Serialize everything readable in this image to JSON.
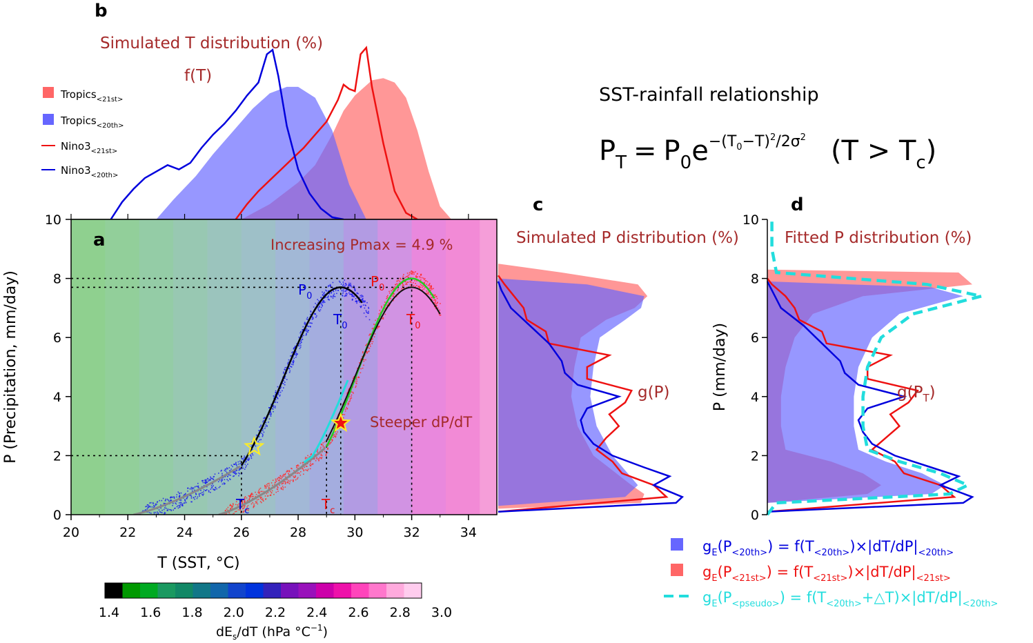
{
  "chart_data": [
    {
      "panel": "a",
      "type": "scatter",
      "annotation_top": "Increasing Pmax  = 4.9 %",
      "annotation_mid": "Steeper dP/dT",
      "xlabel": "T (SST, °C)",
      "ylabel": "P (Precipitation, mm/day)",
      "xlim": [
        20,
        35
      ],
      "ylim": [
        0,
        10
      ],
      "xticks": [
        "20",
        "22",
        "24",
        "26",
        "28",
        "30",
        "32",
        "34"
      ],
      "yticks": [
        "0",
        "2",
        "4",
        "6",
        "8",
        "10"
      ],
      "labels": {
        "p0": "P",
        "t0": "T",
        "tc": "T",
        "sub0": "0",
        "subc": "c"
      },
      "series": [
        {
          "name": "20th",
          "color": "#0000dd",
          "P0": 7.7,
          "T0": 29.5,
          "sigma": 2.0,
          "Tc": 26.0,
          "star": [
            26.45,
            2.3
          ],
          "ref_lines": {
            "P0": 7.7,
            "T0": 29.5,
            "Pc": 2.0,
            "Tc": 26.0
          }
        },
        {
          "name": "21st",
          "color": "#ee1111",
          "P0": 8.0,
          "T0": 32.0,
          "sigma": 1.9,
          "Tc": 29.0,
          "star": [
            29.5,
            3.1
          ],
          "ref_lines": {
            "P0": 8.0,
            "T0": 32.0,
            "Tc": 29.0
          }
        }
      ],
      "background_bands": {
        "T_start": 20.0,
        "T_step": 1.2,
        "count": 11
      }
    },
    {
      "panel": "b",
      "type": "area",
      "title": "Simulated T distribution (%)",
      "func_label": "f(T)",
      "x_range": [
        20,
        35
      ],
      "series": [
        {
          "name": "Tropics",
          "sub": "<21st>",
          "kind": "fill",
          "color": "#ff6666",
          "x": [
            26.0,
            27.0,
            28.0,
            28.6,
            29.2,
            29.6,
            30.0,
            30.6,
            31.0,
            31.4,
            31.8,
            32.2,
            32.6,
            33.0,
            33.4
          ],
          "y": [
            0.0,
            0.7,
            1.7,
            2.5,
            3.9,
            5.0,
            5.7,
            6.4,
            6.5,
            6.3,
            5.6,
            4.1,
            2.2,
            0.6,
            0.0
          ]
        },
        {
          "name": "Tropics",
          "sub": "<20th>",
          "kind": "fill",
          "color": "#6666ff",
          "x": [
            23.0,
            23.6,
            24.4,
            25.0,
            25.8,
            26.4,
            27.0,
            27.6,
            28.0,
            28.6,
            29.2,
            29.8,
            30.4
          ],
          "y": [
            0.0,
            0.9,
            2.0,
            3.0,
            4.2,
            5.1,
            5.8,
            6.1,
            6.1,
            5.6,
            4.1,
            1.6,
            0.0
          ]
        },
        {
          "name": "Nino3",
          "sub": "<21st>",
          "kind": "line",
          "color": "#ee1111",
          "x": [
            25.8,
            26.2,
            26.6,
            27.0,
            27.4,
            27.8,
            28.2,
            28.6,
            29.0,
            29.4,
            29.6,
            29.8,
            30.0,
            30.2,
            30.4,
            30.6,
            31.0,
            31.4,
            31.8,
            32.2
          ],
          "y": [
            0.0,
            0.7,
            1.3,
            1.8,
            2.3,
            2.8,
            3.3,
            3.9,
            4.5,
            5.5,
            6.2,
            6.0,
            5.9,
            7.6,
            7.9,
            6.1,
            3.5,
            1.3,
            0.3,
            0.0
          ]
        },
        {
          "name": "Nino3",
          "sub": "<20th>",
          "kind": "line",
          "color": "#0000dd",
          "x": [
            21.4,
            21.8,
            22.2,
            22.6,
            23.0,
            23.4,
            23.8,
            24.2,
            24.6,
            25.0,
            25.4,
            25.8,
            26.2,
            26.6,
            26.9,
            27.1,
            27.3,
            27.6,
            28.0,
            28.4,
            28.8,
            29.2,
            29.6
          ],
          "y": [
            0.0,
            0.8,
            1.4,
            1.9,
            2.2,
            2.5,
            2.3,
            2.6,
            3.3,
            3.9,
            4.4,
            5.0,
            5.7,
            6.3,
            7.6,
            7.8,
            6.6,
            4.3,
            2.3,
            1.2,
            0.5,
            0.1,
            0.0
          ]
        }
      ]
    },
    {
      "panel": "c",
      "type": "area",
      "title": "Simulated P distribution (%)",
      "func_label": "g(P)",
      "y_range": [
        0,
        10
      ],
      "series": [
        {
          "name": "Tropics 21st",
          "kind": "fill",
          "color": "#ff6666",
          "P": [
            0.2,
            0.4,
            0.7,
            1.0,
            1.5,
            2.0,
            3.0,
            4.0,
            5.0,
            6.0,
            6.6,
            7.0,
            7.4,
            7.8,
            8.2,
            8.5
          ],
          "g": [
            0,
            4.5,
            4.6,
            4.2,
            3.6,
            3.0,
            2.5,
            2.3,
            2.4,
            2.6,
            3.4,
            4.3,
            4.7,
            4.4,
            2.0,
            0
          ]
        },
        {
          "name": "Tropics 20th",
          "kind": "fill",
          "color": "#6666ff",
          "P": [
            0.3,
            0.6,
            1.0,
            1.5,
            2.0,
            3.0,
            4.0,
            5.0,
            6.0,
            6.6,
            7.0,
            7.4,
            7.8,
            8.0
          ],
          "g": [
            0,
            4.0,
            4.4,
            4.0,
            3.6,
            3.1,
            2.9,
            3.0,
            3.2,
            4.0,
            4.5,
            4.6,
            2.8,
            0
          ]
        },
        {
          "name": "Nino3 21st",
          "kind": "line",
          "color": "#ee1111",
          "P": [
            0.1,
            0.6,
            1.0,
            1.4,
            1.8,
            2.2,
            2.6,
            3.0,
            3.4,
            3.8,
            4.2,
            4.6,
            5.0,
            5.4,
            5.8,
            6.2,
            6.6,
            7.0,
            7.4,
            7.8,
            8.1
          ],
          "g": [
            0,
            5.3,
            4.9,
            3.9,
            3.6,
            3.1,
            3.4,
            3.8,
            3.5,
            4.0,
            4.2,
            2.8,
            2.8,
            3.5,
            1.6,
            1.5,
            0.9,
            0.8,
            0.5,
            0.2,
            0
          ]
        },
        {
          "name": "Nino3 20th",
          "kind": "line",
          "color": "#0000dd",
          "P": [
            0.1,
            0.4,
            0.6,
            1.0,
            1.3,
            1.6,
            2.0,
            2.4,
            2.8,
            3.2,
            3.6,
            4.0,
            4.4,
            4.8,
            5.2,
            5.8,
            6.4,
            7.0,
            7.6,
            7.9
          ],
          "g": [
            0,
            5.6,
            5.8,
            4.9,
            5.4,
            4.6,
            3.6,
            3.0,
            2.7,
            2.6,
            2.8,
            3.8,
            2.5,
            2.1,
            2.0,
            1.6,
            1.0,
            0.4,
            0.1,
            0
          ]
        }
      ]
    },
    {
      "panel": "d",
      "type": "area",
      "title": "Fitted P distribution (%)",
      "func_label": "g(P",
      "func_sub": "T",
      "func_close": ")",
      "ylabel": "P (mm/day)",
      "yticks": [
        "0",
        "2",
        "4",
        "6",
        "8",
        "10"
      ],
      "series": [
        {
          "name": "gE 21st",
          "kind": "fill",
          "color": "#ff6666",
          "P": [
            0.4,
            0.7,
            1.0,
            1.4,
            1.8,
            2.2,
            3.0,
            4.0,
            5.0,
            6.0,
            6.8,
            7.4,
            7.8,
            8.2,
            8.3
          ],
          "g": [
            0,
            2.2,
            2.5,
            2.1,
            1.4,
            0.4,
            0.3,
            0.3,
            0.4,
            0.6,
            1.0,
            2.1,
            4.5,
            4.2,
            0
          ]
        },
        {
          "name": "gE 20th",
          "kind": "fill",
          "color": "#6666ff",
          "P": [
            0.4,
            0.7,
            1.0,
            1.4,
            1.8,
            2.2,
            3.0,
            4.0,
            5.0,
            6.0,
            6.8,
            7.4,
            7.7,
            7.9
          ],
          "g": [
            0,
            3.6,
            3.9,
            3.4,
            2.6,
            2.0,
            1.9,
            1.9,
            2.0,
            2.3,
            2.9,
            4.3,
            3.6,
            0
          ]
        },
        {
          "name": "Nino3 21st",
          "kind": "line",
          "color": "#ee1111",
          "P": [
            0.1,
            0.6,
            1.0,
            1.4,
            1.8,
            2.2,
            2.6,
            3.0,
            3.4,
            3.8,
            4.2,
            4.6,
            5.0,
            5.4,
            5.8,
            6.2,
            6.6,
            7.0,
            7.4,
            7.8,
            8.0
          ],
          "g": [
            0,
            4.1,
            3.8,
            3.0,
            2.8,
            2.3,
            2.6,
            2.9,
            2.7,
            3.1,
            3.3,
            2.2,
            2.2,
            2.7,
            1.3,
            1.2,
            0.7,
            0.6,
            0.4,
            0.1,
            0
          ]
        },
        {
          "name": "Nino3 20th",
          "kind": "line",
          "color": "#0000dd",
          "P": [
            0.1,
            0.4,
            0.6,
            1.0,
            1.3,
            1.6,
            2.0,
            2.4,
            2.8,
            3.2,
            3.6,
            4.0,
            4.4,
            4.8,
            5.2,
            5.8,
            6.4,
            7.0,
            7.6,
            7.9
          ],
          "g": [
            0,
            4.3,
            4.5,
            3.8,
            4.2,
            3.6,
            2.8,
            2.3,
            2.1,
            2.0,
            2.2,
            3.0,
            2.0,
            1.7,
            1.6,
            1.2,
            0.8,
            0.3,
            0.1,
            0
          ]
        },
        {
          "name": "gE pseudo",
          "kind": "dashed",
          "color": "#22dddd",
          "P": [
            0.0,
            0.4,
            0.7,
            1.0,
            1.4,
            1.8,
            2.2,
            3.0,
            4.0,
            5.0,
            6.0,
            6.8,
            7.4,
            7.8,
            8.2,
            9.0,
            10.0
          ],
          "g": [
            0,
            0.2,
            4.0,
            4.4,
            3.8,
            2.9,
            2.2,
            2.1,
            2.1,
            2.2,
            2.5,
            3.2,
            4.7,
            3.5,
            0.2,
            0.1,
            0.1
          ]
        }
      ]
    },
    {
      "panel": "colorbar",
      "type": "heatmap",
      "label": "dE",
      "label_sub": "s",
      "label_rest": "/dT (hPa °C",
      "label_sup": "−1",
      "label_close": ")",
      "ticks": [
        "1.4",
        "1.6",
        "1.8",
        "2.0",
        "2.2",
        "2.4",
        "2.6",
        "2.8",
        "3.0"
      ],
      "colors": [
        "#000000",
        "#009900",
        "#00aa22",
        "#1a9960",
        "#118866",
        "#117788",
        "#1166aa",
        "#1144cc",
        "#0033dd",
        "#3322bb",
        "#7711bb",
        "#9911bb",
        "#cc00aa",
        "#ee11aa",
        "#ff44bb",
        "#ff77cc",
        "#ffaadd",
        "#ffccee"
      ]
    }
  ],
  "text": {
    "label_a": "a",
    "label_b": "b",
    "label_c": "c",
    "label_d": "d",
    "relationship_title": "SST-rainfall relationship",
    "formula": {
      "lhs_p": "P",
      "lhs_sub": "T",
      "eq": "=",
      "p0": "P",
      "p0_sub": "0",
      "e": "e",
      "exp_a": "−(T",
      "exp_sub": "0",
      "exp_b": "−T)",
      "exp_sup": "2",
      "exp_c": "/2σ",
      "exp_sup2": "2",
      "cond": "(T > T",
      "cond_sub": "c",
      "cond_close": ")"
    },
    "legend_b": [
      {
        "label": "Tropics",
        "sub": "<21st>"
      },
      {
        "label": "Tropics",
        "sub": "<20th>"
      },
      {
        "label": "Nino3",
        "sub": "<21st>"
      },
      {
        "label": "Nino3",
        "sub": "<20th>"
      }
    ],
    "legend_d": [
      {
        "g": "g",
        "gsub": "E",
        "a": "(P",
        "asub": "<20th>",
        "b": ") = f(T",
        "bsub": "<20th>",
        "c": ")×|dT/dP|",
        "csub": "<20th>"
      },
      {
        "g": "g",
        "gsub": "E",
        "a": "(P",
        "asub": "<21st>",
        "b": ") = f(T",
        "bsub": "<21st>",
        "c": ")×|dT/dP|",
        "csub": "<21st>"
      },
      {
        "g": "g",
        "gsub": "E",
        "a": "(P",
        "asub": "<pseudo>",
        "b": ") = f(T",
        "bsub": "<20th>",
        "b2": "+△T",
        "c": ")×|dT/dP|",
        "csub": "<20th>"
      }
    ]
  }
}
